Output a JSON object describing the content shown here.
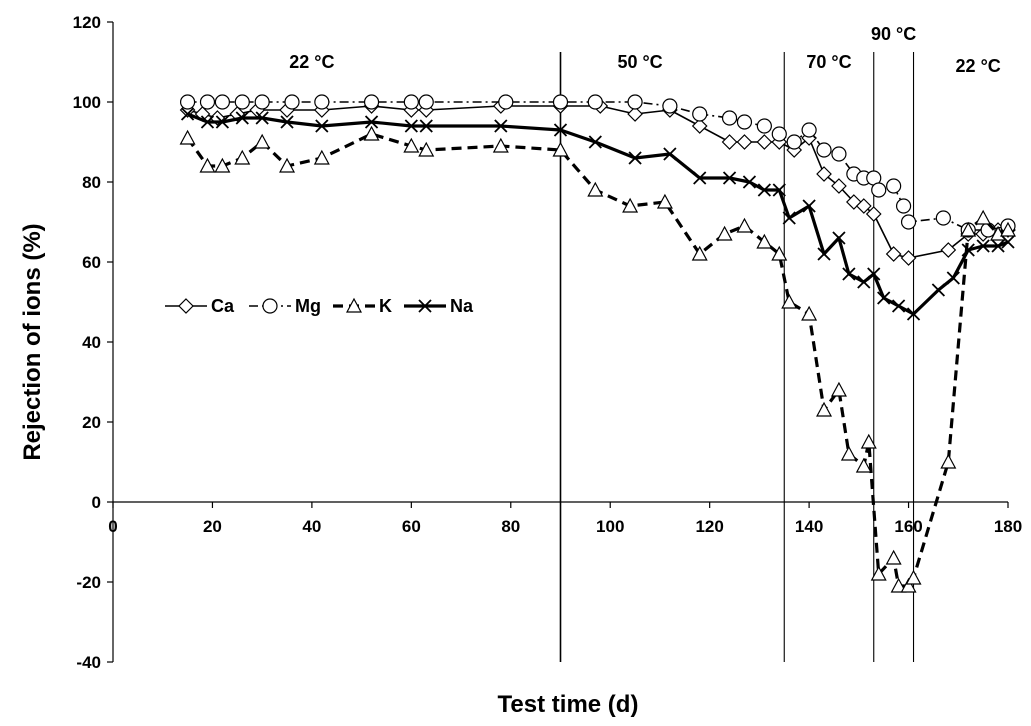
{
  "chart_data": {
    "type": "line",
    "title": "",
    "xlabel": "Test time (d)",
    "ylabel": "Rejection of ions (%)",
    "xlim": [
      0,
      180
    ],
    "ylim": [
      -40,
      120
    ],
    "xticks": [
      0,
      20,
      40,
      60,
      80,
      100,
      120,
      140,
      160,
      180
    ],
    "yticks": [
      -40,
      -20,
      0,
      20,
      40,
      60,
      80,
      100,
      120
    ],
    "grid": false,
    "legend_position": "middle-left",
    "vertical_lines": [
      90,
      135,
      153,
      161
    ],
    "region_labels": [
      {
        "text": "22 °C",
        "x": 40,
        "y": 110
      },
      {
        "text": "50 °C",
        "x": 106,
        "y": 110
      },
      {
        "text": "70 °C",
        "x": 144,
        "y": 110
      },
      {
        "text": "90 °C",
        "x": 157,
        "y": 117
      },
      {
        "text": "22 °C",
        "x": 174,
        "y": 109
      }
    ],
    "series": [
      {
        "name": "Ca",
        "marker": "diamond",
        "line": "thin-solid",
        "color": "#000000",
        "x": [
          15,
          18,
          21,
          25,
          29,
          35,
          42,
          52,
          60,
          63,
          78,
          90,
          98,
          105,
          112,
          118,
          124,
          127,
          131,
          134,
          137,
          140,
          143,
          146,
          149,
          151,
          153,
          157,
          160,
          168,
          172,
          175,
          178,
          180
        ],
        "y": [
          98,
          97,
          96,
          97,
          98,
          98,
          98,
          99,
          98,
          98,
          99,
          99,
          99,
          97,
          98,
          94,
          90,
          90,
          90,
          90,
          88,
          91,
          82,
          79,
          75,
          74,
          72,
          62,
          61,
          63,
          67,
          67,
          68,
          68
        ]
      },
      {
        "name": "Mg",
        "marker": "circle",
        "line": "dash-dot",
        "color": "#000000",
        "x": [
          15,
          19,
          22,
          26,
          30,
          36,
          42,
          52,
          60,
          63,
          79,
          90,
          97,
          105,
          112,
          118,
          124,
          127,
          131,
          134,
          137,
          140,
          143,
          146,
          149,
          151,
          153,
          154,
          157,
          159,
          160,
          167,
          172,
          176,
          180
        ],
        "y": [
          100,
          100,
          100,
          100,
          100,
          100,
          100,
          100,
          100,
          100,
          100,
          100,
          100,
          100,
          99,
          97,
          96,
          95,
          94,
          92,
          90,
          93,
          88,
          87,
          82,
          81,
          81,
          78,
          79,
          74,
          70,
          71,
          68,
          68,
          69
        ]
      },
      {
        "name": "K",
        "marker": "triangle",
        "line": "thick-dashed",
        "color": "#000000",
        "x": [
          15,
          19,
          22,
          26,
          30,
          35,
          42,
          52,
          60,
          63,
          78,
          90,
          97,
          104,
          111,
          118,
          123,
          127,
          131,
          134,
          136,
          140,
          143,
          146,
          148,
          151,
          152,
          154,
          157,
          158,
          160,
          161,
          168,
          172,
          175,
          178,
          180
        ],
        "y": [
          91,
          84,
          84,
          86,
          90,
          84,
          86,
          92,
          89,
          88,
          89,
          88,
          78,
          74,
          75,
          62,
          67,
          69,
          65,
          62,
          50,
          47,
          23,
          28,
          12,
          9,
          15,
          -18,
          -14,
          -21,
          -21,
          -19,
          10,
          68,
          71,
          67,
          68
        ]
      },
      {
        "name": "Na",
        "marker": "x",
        "line": "thick-solid",
        "color": "#000000",
        "x": [
          15,
          19,
          22,
          26,
          30,
          35,
          42,
          52,
          60,
          63,
          78,
          90,
          97,
          105,
          112,
          118,
          124,
          128,
          131,
          134,
          136,
          140,
          143,
          146,
          148,
          151,
          153,
          155,
          158,
          161,
          166,
          169,
          172,
          175,
          178,
          180
        ],
        "y": [
          97,
          95,
          95,
          96,
          96,
          95,
          94,
          95,
          94,
          94,
          94,
          93,
          90,
          86,
          87,
          81,
          81,
          80,
          78,
          78,
          71,
          74,
          62,
          66,
          57,
          55,
          57,
          51,
          49,
          47,
          53,
          56,
          63,
          64,
          64,
          65
        ]
      }
    ]
  }
}
